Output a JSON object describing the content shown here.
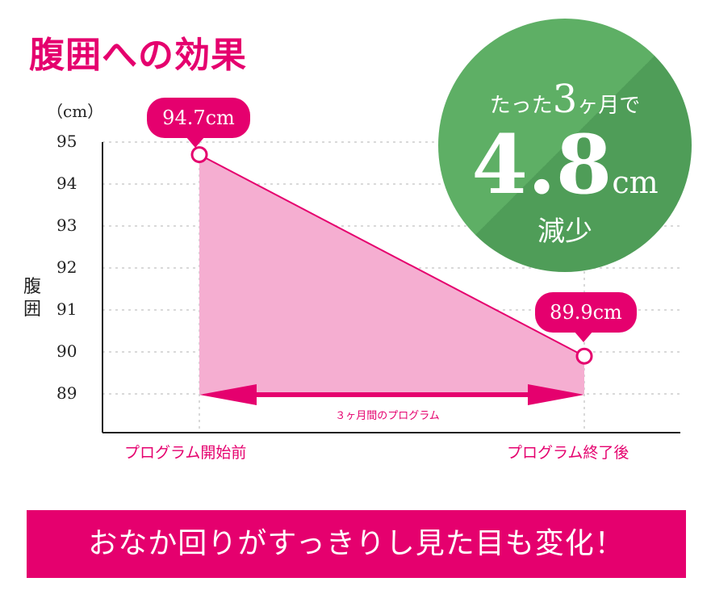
{
  "title": "腹囲への効果",
  "unit": "（cm）",
  "ylabel": "腹囲",
  "chart_data": {
    "type": "area",
    "x": [
      "プログラム開始前",
      "プログラム終了後"
    ],
    "values": [
      94.7,
      89.9
    ],
    "ylim": [
      88.5,
      95.5
    ],
    "yticks": [
      "95",
      "94",
      "93",
      "92",
      "91",
      "90",
      "89"
    ],
    "data_labels": [
      "94.7cm",
      "89.9cm"
    ],
    "annotation": "３ヶ月間のプログラム",
    "colors": {
      "line": "#e5006e",
      "fill": "#f5aed1",
      "grid": "#d9d9d9"
    }
  },
  "badge": {
    "prefix": "たった",
    "months": "3",
    "months_suffix": "ヶ月で",
    "value": "4.8",
    "unit": "cm",
    "result": "減少",
    "colors": [
      "#5eaf65",
      "#4f9d58"
    ]
  },
  "banner": "おなか回りがすっきりし見た目も変化！"
}
